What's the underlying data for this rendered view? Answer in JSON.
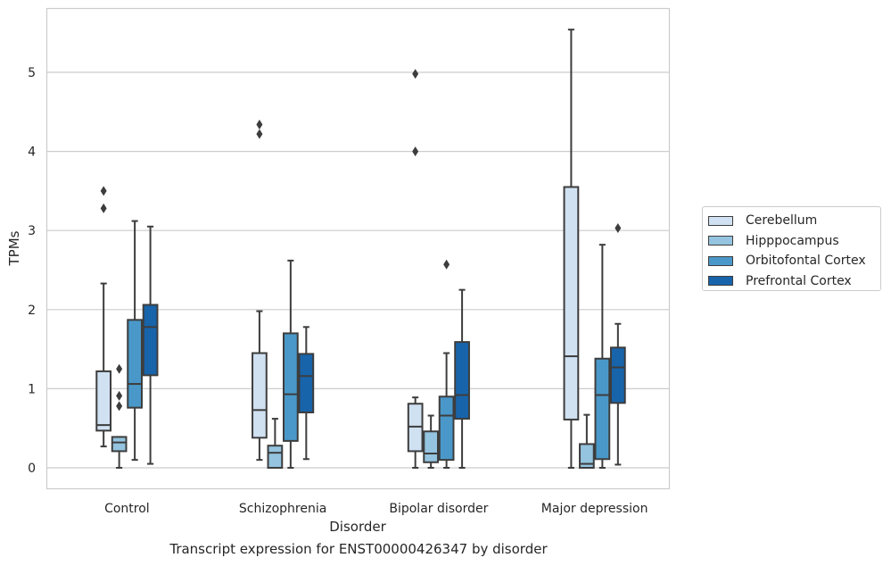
{
  "chart_data": {
    "type": "box",
    "caption": "Transcript expression for ENST00000426347 by disorder",
    "xlabel": "Disorder",
    "ylabel": "TPMs",
    "ylim": [
      -0.27,
      5.85
    ],
    "yticks": [
      0,
      1,
      2,
      3,
      4,
      5
    ],
    "grid": "horizontal",
    "legend_position": "right",
    "categories": [
      "Control",
      "Schizophrenia",
      "Bipolar disorder",
      "Major depression"
    ],
    "series": [
      {
        "name": "Cerebellum",
        "color": "#d0e1f2",
        "boxes": [
          {
            "whisker_low": 0.27,
            "q1": 0.47,
            "median": 0.54,
            "q3": 1.22,
            "whisker_high": 2.33,
            "outliers": [
              3.28,
              3.5
            ]
          },
          {
            "whisker_low": 0.1,
            "q1": 0.38,
            "median": 0.73,
            "q3": 1.45,
            "whisker_high": 1.98,
            "outliers": [
              4.22,
              4.34
            ]
          },
          {
            "whisker_low": 0.0,
            "q1": 0.21,
            "median": 0.52,
            "q3": 0.81,
            "whisker_high": 0.89,
            "outliers": [
              4.0,
              4.98
            ]
          },
          {
            "whisker_low": 0.0,
            "q1": 0.61,
            "median": 1.41,
            "q3": 3.55,
            "whisker_high": 5.54,
            "outliers": []
          }
        ]
      },
      {
        "name": "Hipppocampus",
        "color": "#94c4df",
        "boxes": [
          {
            "whisker_low": 0.0,
            "q1": 0.21,
            "median": 0.32,
            "q3": 0.39,
            "whisker_high": 0.39,
            "outliers": [
              0.78,
              0.91,
              1.25
            ]
          },
          {
            "whisker_low": 0.0,
            "q1": 0.0,
            "median": 0.19,
            "q3": 0.28,
            "whisker_high": 0.62,
            "outliers": []
          },
          {
            "whisker_low": 0.0,
            "q1": 0.07,
            "median": 0.18,
            "q3": 0.46,
            "whisker_high": 0.66,
            "outliers": []
          },
          {
            "whisker_low": 0.0,
            "q1": 0.0,
            "median": 0.05,
            "q3": 0.3,
            "whisker_high": 0.67,
            "outliers": []
          }
        ]
      },
      {
        "name": "Orbitofontal Cortex",
        "color": "#4a98c9",
        "boxes": [
          {
            "whisker_low": 0.1,
            "q1": 0.76,
            "median": 1.06,
            "q3": 1.87,
            "whisker_high": 3.12,
            "outliers": []
          },
          {
            "whisker_low": 0.0,
            "q1": 0.34,
            "median": 0.93,
            "q3": 1.7,
            "whisker_high": 2.62,
            "outliers": []
          },
          {
            "whisker_low": 0.0,
            "q1": 0.1,
            "median": 0.66,
            "q3": 0.9,
            "whisker_high": 1.45,
            "outliers": [
              2.57
            ]
          },
          {
            "whisker_low": 0.0,
            "q1": 0.11,
            "median": 0.92,
            "q3": 1.38,
            "whisker_high": 2.82,
            "outliers": []
          }
        ]
      },
      {
        "name": "Prefrontal Cortex",
        "color": "#1764ab",
        "boxes": [
          {
            "whisker_low": 0.05,
            "q1": 1.17,
            "median": 1.78,
            "q3": 2.06,
            "whisker_high": 3.05,
            "outliers": []
          },
          {
            "whisker_low": 0.11,
            "q1": 0.7,
            "median": 1.16,
            "q3": 1.44,
            "whisker_high": 1.78,
            "outliers": []
          },
          {
            "whisker_low": 0.0,
            "q1": 0.62,
            "median": 0.92,
            "q3": 1.59,
            "whisker_high": 2.25,
            "outliers": []
          },
          {
            "whisker_low": 0.04,
            "q1": 0.82,
            "median": 1.27,
            "q3": 1.52,
            "whisker_high": 1.82,
            "outliers": [
              3.03
            ]
          }
        ]
      }
    ]
  }
}
